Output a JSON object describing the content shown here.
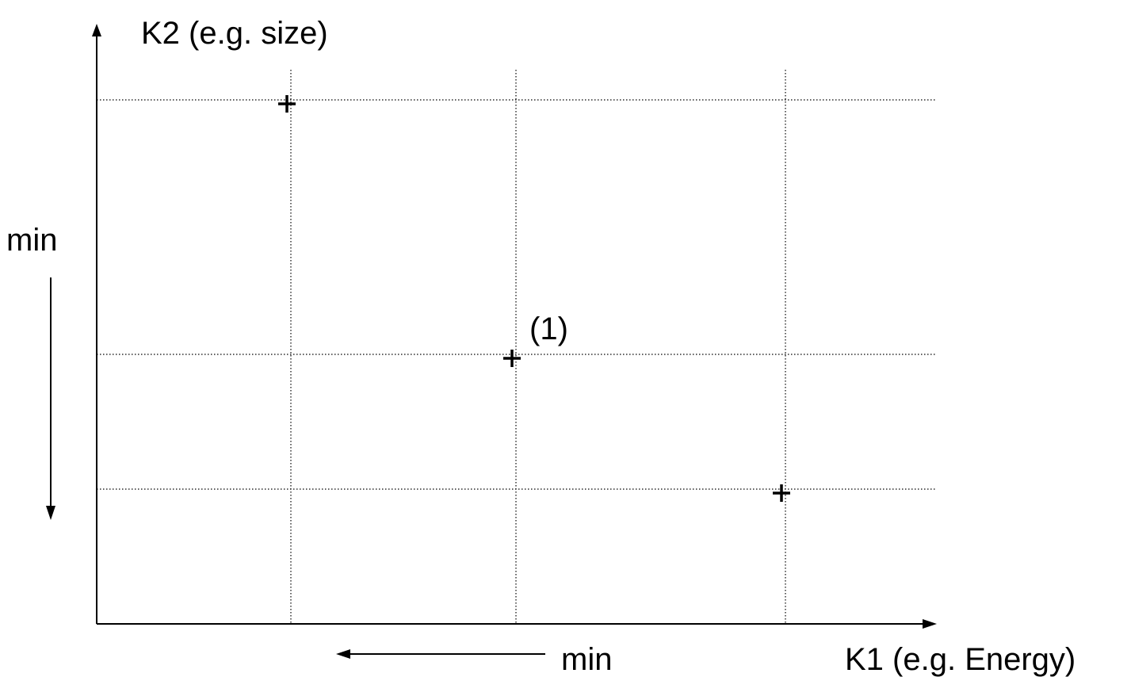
{
  "diagram": {
    "y_axis_label": "K2 (e.g. size)",
    "x_axis_label": "K1 (e.g. Energy)",
    "y_min_label": "min",
    "x_min_label": "min",
    "point_label": "(1)",
    "point_marker_glyph": "+",
    "colors": {
      "line": "#000000",
      "grid": "#000000",
      "background": "#ffffff"
    }
  },
  "chart_data": {
    "type": "scatter",
    "xlabel": "K1 (e.g. Energy)",
    "ylabel": "K2 (e.g. size)",
    "grid": true,
    "points": [
      {
        "x": 1,
        "y": 3
      },
      {
        "x": 2,
        "y": 2,
        "label": "(1)"
      },
      {
        "x": 3,
        "y": 1
      }
    ],
    "x_direction_of_min": "left",
    "y_direction_of_min": "down"
  }
}
